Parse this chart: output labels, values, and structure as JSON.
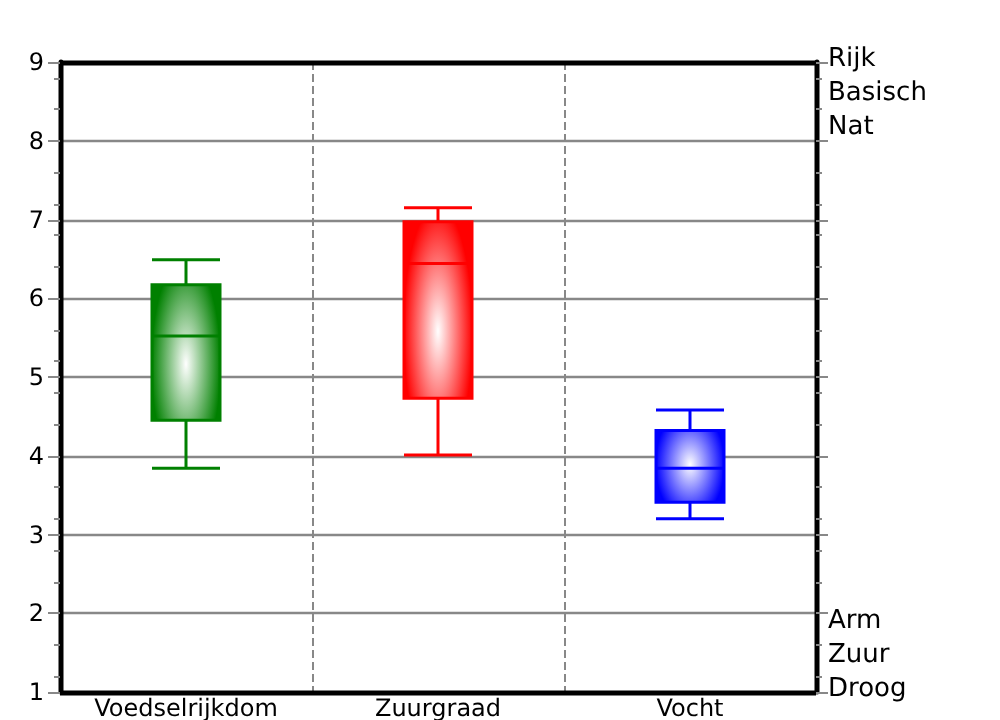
{
  "chart_data": {
    "type": "box",
    "categories": [
      "Voedselrijkdom",
      "Zuurgraad",
      "Vocht"
    ],
    "colors": [
      "#008000",
      "#ff0000",
      "#0000ff"
    ],
    "boxes": [
      {
        "low": 3.84,
        "q1": 4.45,
        "median": 5.52,
        "q3": 6.17,
        "high": 6.49
      },
      {
        "low": 4.01,
        "q1": 4.73,
        "median": 6.44,
        "q3": 6.97,
        "high": 7.15
      },
      {
        "low": 3.2,
        "q1": 3.41,
        "median": 3.84,
        "q3": 4.32,
        "high": 4.58
      }
    ],
    "ylim": [
      1,
      9
    ],
    "yticks": [
      1,
      2,
      3,
      4,
      5,
      6,
      7,
      8,
      9
    ],
    "grid": true,
    "annotations": [
      "Rijk",
      "Basisch",
      "Nat",
      "Arm",
      "Zuur",
      "Droog"
    ]
  }
}
